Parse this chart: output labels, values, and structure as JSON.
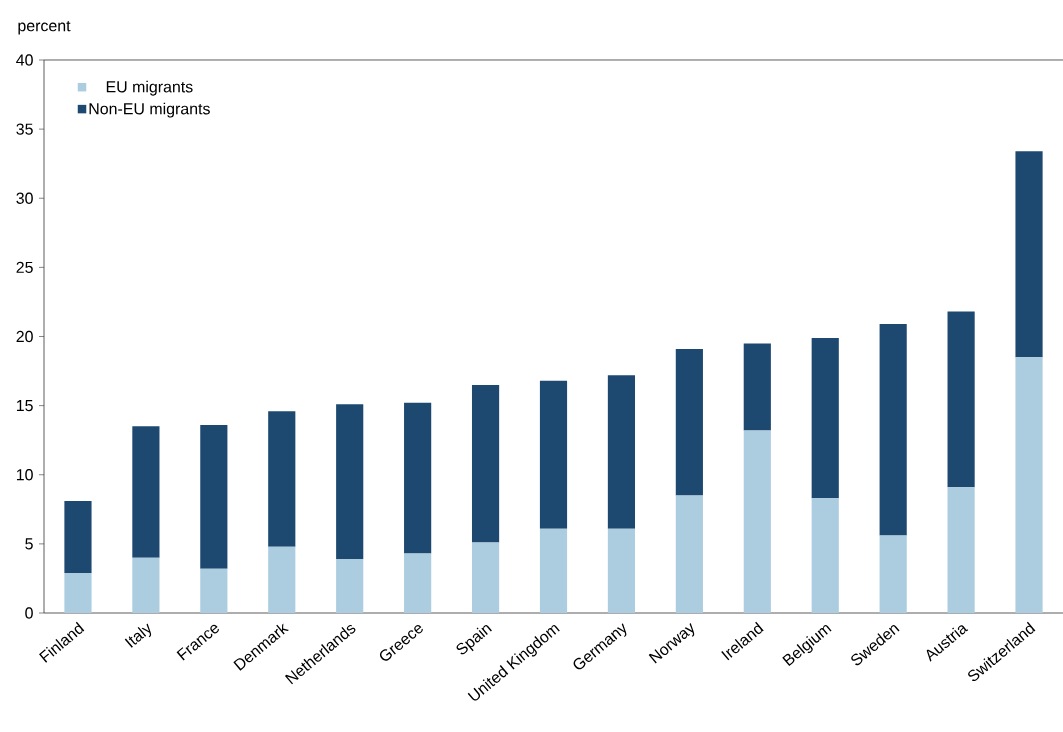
{
  "chart_data": {
    "type": "bar",
    "stacked": true,
    "ylabel": "percent",
    "categories": [
      "Finland",
      "Italy",
      "France",
      "Denmark",
      "Netherlands",
      "Greece",
      "Spain",
      "United Kingdom",
      "Germany",
      "Norway",
      "Ireland",
      "Belgium",
      "Sweden",
      "Austria",
      "Switzerland"
    ],
    "series": [
      {
        "name": "EU migrants",
        "color": "#abcddf",
        "values": [
          2.9,
          4.0,
          3.2,
          4.8,
          3.9,
          4.3,
          5.1,
          6.1,
          6.1,
          8.5,
          13.2,
          8.3,
          5.6,
          9.1,
          18.5
        ]
      },
      {
        "name": "Non-EU migrants",
        "color": "#1d4870",
        "values": [
          5.2,
          9.5,
          10.4,
          9.8,
          11.2,
          10.9,
          11.4,
          10.7,
          11.1,
          10.6,
          6.3,
          11.6,
          15.3,
          12.7,
          14.9
        ]
      }
    ],
    "ylim": [
      0,
      40
    ],
    "yticks": [
      0,
      5,
      10,
      15,
      20,
      25,
      30,
      35,
      40
    ],
    "legend": "top left",
    "grid": false
  }
}
